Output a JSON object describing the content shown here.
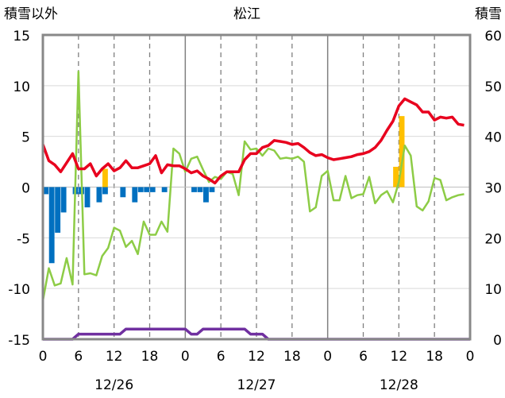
{
  "chart_data": {
    "type": "bar+line",
    "title": "松江",
    "ylabel_left": "積雪以外",
    "ylabel_right": "積雪",
    "y_left_lim": [
      -15,
      15
    ],
    "y_left_ticks": [
      15,
      10,
      5,
      0,
      -5,
      -10,
      -15
    ],
    "y_right_lim": [
      0,
      60
    ],
    "y_right_ticks": [
      60,
      50,
      40,
      30,
      20,
      10,
      0
    ],
    "x_lim": [
      0,
      72
    ],
    "x_ticks": [
      0,
      6,
      12,
      18,
      24,
      30,
      36,
      42,
      48,
      54,
      60,
      66,
      72
    ],
    "x_tick_labels": [
      "0",
      "6",
      "12",
      "18",
      "0",
      "6",
      "12",
      "18",
      "0",
      "6",
      "12",
      "18",
      "0"
    ],
    "x_dashed_at": [
      6,
      12,
      18,
      30,
      36,
      42,
      54,
      60,
      66
    ],
    "x_solid_at": [
      24,
      48
    ],
    "date_labels": [
      {
        "text": "12/26",
        "hour": 12
      },
      {
        "text": "12/27",
        "hour": 36
      },
      {
        "text": "12/28",
        "hour": 60
      }
    ],
    "red_line": [
      [
        0,
        4.2
      ],
      [
        1,
        2.6
      ],
      [
        2,
        2.2
      ],
      [
        3,
        1.5
      ],
      [
        4,
        2.4
      ],
      [
        5,
        3.3
      ],
      [
        6,
        1.8
      ],
      [
        7,
        1.8
      ],
      [
        8,
        2.3
      ],
      [
        9,
        1.1
      ],
      [
        10,
        1.8
      ],
      [
        11,
        2.3
      ],
      [
        12,
        1.6
      ],
      [
        13,
        1.9
      ],
      [
        14,
        2.6
      ],
      [
        15,
        1.9
      ],
      [
        16,
        1.9
      ],
      [
        17,
        2.1
      ],
      [
        18,
        2.3
      ],
      [
        19,
        3.1
      ],
      [
        20,
        1.4
      ],
      [
        21,
        2.2
      ],
      [
        22,
        2.1
      ],
      [
        23,
        2.1
      ],
      [
        24,
        1.8
      ],
      [
        25,
        1.4
      ],
      [
        26,
        1.6
      ],
      [
        27,
        1.1
      ],
      [
        28,
        0.8
      ],
      [
        29,
        0.4
      ],
      [
        30,
        1.1
      ],
      [
        31,
        1.5
      ],
      [
        32,
        1.5
      ],
      [
        33,
        1.5
      ],
      [
        34,
        2.7
      ],
      [
        35,
        3.3
      ],
      [
        36,
        3.3
      ],
      [
        37,
        3.9
      ],
      [
        38,
        4.1
      ],
      [
        39,
        4.6
      ],
      [
        40,
        4.5
      ],
      [
        41,
        4.4
      ],
      [
        42,
        4.2
      ],
      [
        43,
        4.3
      ],
      [
        44,
        3.9
      ],
      [
        45,
        3.4
      ],
      [
        46,
        3.1
      ],
      [
        47,
        3.2
      ],
      [
        48,
        2.9
      ],
      [
        49,
        2.7
      ],
      [
        50,
        2.8
      ],
      [
        51,
        2.9
      ],
      [
        52,
        3.0
      ],
      [
        53,
        3.2
      ],
      [
        54,
        3.3
      ],
      [
        55,
        3.5
      ],
      [
        56,
        3.9
      ],
      [
        57,
        4.6
      ],
      [
        58,
        5.6
      ],
      [
        59,
        6.5
      ],
      [
        60,
        8.0
      ],
      [
        61,
        8.7
      ],
      [
        62,
        8.4
      ],
      [
        63,
        8.1
      ],
      [
        64,
        7.4
      ],
      [
        65,
        7.4
      ],
      [
        66,
        6.6
      ],
      [
        67,
        6.9
      ],
      [
        68,
        6.8
      ],
      [
        69,
        6.9
      ],
      [
        70,
        6.2
      ],
      [
        71,
        6.1
      ]
    ],
    "green_line": [
      [
        0,
        -11.2
      ],
      [
        1,
        -8.0
      ],
      [
        2,
        -9.7
      ],
      [
        3,
        -9.5
      ],
      [
        4,
        -7.0
      ],
      [
        5,
        -9.6
      ],
      [
        6,
        11.4
      ],
      [
        7,
        -8.6
      ],
      [
        8,
        -8.5
      ],
      [
        9,
        -8.7
      ],
      [
        10,
        -6.8
      ],
      [
        11,
        -6.0
      ],
      [
        12,
        -4.0
      ],
      [
        13,
        -4.3
      ],
      [
        14,
        -5.9
      ],
      [
        15,
        -5.3
      ],
      [
        16,
        -6.6
      ],
      [
        17,
        -3.4
      ],
      [
        18,
        -4.7
      ],
      [
        19,
        -4.7
      ],
      [
        20,
        -3.4
      ],
      [
        21,
        -4.4
      ],
      [
        22,
        3.8
      ],
      [
        23,
        3.3
      ],
      [
        24,
        1.5
      ],
      [
        25,
        2.8
      ],
      [
        26,
        3.0
      ],
      [
        27,
        1.7
      ],
      [
        28,
        0.5
      ],
      [
        29,
        1.0
      ],
      [
        30,
        0.8
      ],
      [
        31,
        1.5
      ],
      [
        32,
        1.3
      ],
      [
        33,
        -0.8
      ],
      [
        34,
        4.5
      ],
      [
        35,
        3.7
      ],
      [
        36,
        3.8
      ],
      [
        37,
        3.1
      ],
      [
        38,
        3.8
      ],
      [
        39,
        3.6
      ],
      [
        40,
        2.8
      ],
      [
        41,
        2.9
      ],
      [
        42,
        2.8
      ],
      [
        43,
        3.0
      ],
      [
        44,
        2.5
      ],
      [
        45,
        -2.4
      ],
      [
        46,
        -2.0
      ],
      [
        47,
        1.1
      ],
      [
        48,
        1.6
      ],
      [
        49,
        -1.3
      ],
      [
        50,
        -1.3
      ],
      [
        51,
        1.1
      ],
      [
        52,
        -1.1
      ],
      [
        53,
        -0.8
      ],
      [
        54,
        -0.7
      ],
      [
        55,
        1.0
      ],
      [
        56,
        -1.6
      ],
      [
        57,
        -0.8
      ],
      [
        58,
        -0.4
      ],
      [
        59,
        -1.5
      ],
      [
        60,
        0.5
      ],
      [
        61,
        4.1
      ],
      [
        62,
        3.1
      ],
      [
        63,
        -1.9
      ],
      [
        64,
        -2.3
      ],
      [
        65,
        -1.4
      ],
      [
        66,
        0.9
      ],
      [
        67,
        0.7
      ],
      [
        68,
        -1.3
      ],
      [
        69,
        -1.0
      ],
      [
        70,
        -0.8
      ],
      [
        71,
        -0.7
      ]
    ],
    "purple_line_right_axis": [
      [
        0,
        0
      ],
      [
        5,
        0
      ],
      [
        6,
        1
      ],
      [
        10,
        1
      ],
      [
        11,
        1
      ],
      [
        13,
        1
      ],
      [
        14,
        2
      ],
      [
        22,
        2
      ],
      [
        24,
        2
      ],
      [
        25,
        1
      ],
      [
        26,
        1
      ],
      [
        27,
        2
      ],
      [
        34,
        2
      ],
      [
        35,
        1
      ],
      [
        37,
        1
      ],
      [
        38,
        0
      ],
      [
        72,
        0
      ]
    ],
    "blue_bars": [
      [
        0,
        -0.7
      ],
      [
        1,
        -7.5
      ],
      [
        2,
        -4.5
      ],
      [
        3,
        -2.5
      ],
      [
        5,
        -0.7
      ],
      [
        6,
        -0.7
      ],
      [
        7,
        -2.0
      ],
      [
        9,
        -1.5
      ],
      [
        10,
        -0.7
      ],
      [
        13,
        -1.0
      ],
      [
        15,
        -1.5
      ],
      [
        16,
        -0.5
      ],
      [
        17,
        -0.5
      ],
      [
        18,
        -0.5
      ],
      [
        20,
        -0.5
      ],
      [
        25,
        -0.5
      ],
      [
        26,
        -0.5
      ],
      [
        27,
        -1.5
      ],
      [
        28,
        -0.5
      ]
    ],
    "orange_bars": [
      [
        10,
        1.8
      ],
      [
        59,
        2.0
      ],
      [
        60,
        7.0
      ]
    ],
    "colors": {
      "red": "#e8001e",
      "green": "#8dcc46",
      "purple": "#7030a0",
      "blue": "#0070c0",
      "orange": "#ffc000",
      "frame": "#888888",
      "grid": "#808080"
    }
  }
}
